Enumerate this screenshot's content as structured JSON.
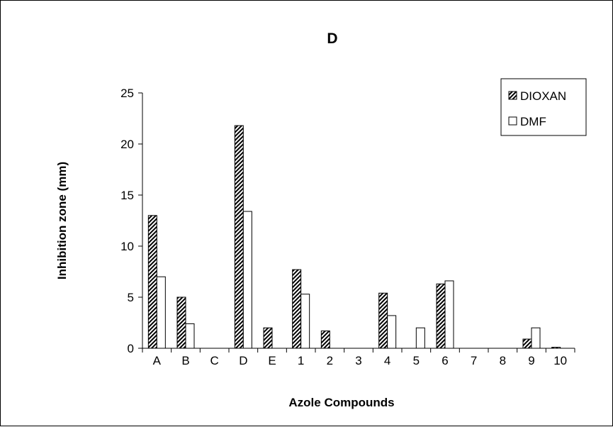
{
  "chart_data": {
    "type": "bar",
    "title": "D",
    "xlabel": "Azole Compounds",
    "ylabel": "Inhibition zone (mm)",
    "ylim": [
      0,
      25
    ],
    "yticks": [
      "0",
      "5",
      "10",
      "15",
      "20",
      "25"
    ],
    "categories": [
      "A",
      "B",
      "C",
      "D",
      "E",
      "1",
      "2",
      "3",
      "4",
      "5",
      "6",
      "7",
      "8",
      "9",
      "10"
    ],
    "series": [
      {
        "name": "DIOXAN",
        "pattern": "diagonal-hatch",
        "values": [
          13,
          5,
          0,
          21.8,
          2,
          7.7,
          1.7,
          0,
          5.4,
          0,
          6.3,
          0,
          0,
          0.9,
          0.1
        ]
      },
      {
        "name": "DMF",
        "pattern": "white",
        "values": [
          7,
          2.4,
          0,
          13.4,
          0,
          5.3,
          0,
          0,
          3.2,
          2,
          6.6,
          0,
          0,
          2,
          0
        ]
      }
    ],
    "grid": false,
    "legend_position": "top-right",
    "colors": {
      "outline": "#000000",
      "fill_dmf": "#ffffff",
      "hatch": "#000000"
    }
  }
}
